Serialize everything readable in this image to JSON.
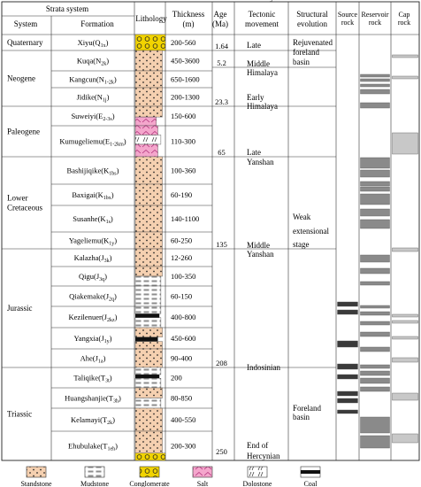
{
  "headers": {
    "strata_system": "Strata system",
    "system": "System",
    "formation": "Formation",
    "lithology": "Lithology",
    "thickness": [
      "Thickness",
      "(m)"
    ],
    "age": [
      "Age",
      "(Ma)"
    ],
    "tectonic": [
      "Tectonic",
      "movement"
    ],
    "structural": [
      "Structural",
      "evolution"
    ],
    "source": [
      "Source",
      "rock"
    ],
    "reservoir": [
      "Reservoir",
      "rock"
    ],
    "cap": [
      "Cap",
      "rock"
    ]
  },
  "systems": [
    {
      "name": [
        "Quaternary"
      ]
    },
    {
      "name": [
        "Neogene"
      ]
    },
    {
      "name": [
        "Paleogene"
      ]
    },
    {
      "name": [
        "Lower",
        "Cretaceous"
      ]
    },
    {
      "name": [
        "Jurassic"
      ]
    },
    {
      "name": [
        "Triassic"
      ]
    }
  ],
  "formations": [
    {
      "name": "Xiyu",
      "code": "Q",
      "sub": "1x",
      "thickness": "200-560",
      "lith": "conglomerate"
    },
    {
      "name": "Kuqa",
      "code": "N",
      "sub": "2k",
      "thickness": "450-3600",
      "lith": "sand"
    },
    {
      "name": "Kangcun",
      "code": "N",
      "sub": "1-2k",
      "thickness": "650-1600",
      "lith": "sand"
    },
    {
      "name": "Jidike",
      "code": "N",
      "sub": "1j",
      "thickness": "200-1300",
      "lith": "sand"
    },
    {
      "name": "Suweiyi",
      "code": "E",
      "sub": "2-3s",
      "thickness": "150-600",
      "lith": "sand-salt"
    },
    {
      "name": "Kumugeliemu",
      "code": "E",
      "sub": "1-2km",
      "thickness": "110-300",
      "lith": "salt-dolo"
    },
    {
      "name": "Bashijiqike",
      "code": "K",
      "sub": "1bs",
      "thickness": "100-360",
      "lith": "sand"
    },
    {
      "name": "Baxigai",
      "code": "K",
      "sub": "1bx",
      "thickness": "60-190",
      "lith": "sand"
    },
    {
      "name": "Susanhe",
      "code": "K",
      "sub": "1s",
      "thickness": "140-1100",
      "lith": "sand"
    },
    {
      "name": "Yageliemu",
      "code": "K",
      "sub": "1y",
      "thickness": "60-250",
      "lith": "sand"
    },
    {
      "name": "Kalazha",
      "code": "J",
      "sub": "3k",
      "thickness": "12-260",
      "lith": "sand"
    },
    {
      "name": "Qigu",
      "code": "J",
      "sub": "3q",
      "thickness": "100-350",
      "lith": "sand-mud"
    },
    {
      "name": "Qiakemake",
      "code": "J",
      "sub": "2q",
      "thickness": "60-150",
      "lith": "mud"
    },
    {
      "name": "Kezilenuer",
      "code": "J",
      "sub": "2kz",
      "thickness": "400-800",
      "lith": "mud-coal"
    },
    {
      "name": "Yangxia",
      "code": "J",
      "sub": "1y",
      "thickness": "450-600",
      "lith": "sand-coal"
    },
    {
      "name": "Ahe",
      "code": "J",
      "sub": "1a",
      "thickness": "90-400",
      "lith": "sand"
    },
    {
      "name": "Taliqike",
      "code": "T",
      "sub": "3t",
      "thickness": "200",
      "lith": "mud-coal"
    },
    {
      "name": "Huangshanjie",
      "code": "T",
      "sub": "3h",
      "thickness": "80-850",
      "lith": "sand-mud"
    },
    {
      "name": "Kelamayi",
      "code": "T",
      "sub": "2k",
      "thickness": "400-550",
      "lith": "sand"
    },
    {
      "name": "Ehubulake",
      "code": "T",
      "sub": "1eh",
      "thickness": "200-300",
      "lith": "sand-cong"
    }
  ],
  "ages": [
    {
      "label": "1.64"
    },
    {
      "label": "5.2"
    },
    {
      "label": "23.3"
    },
    {
      "label": "65"
    },
    {
      "label": "135"
    },
    {
      "label": "208"
    },
    {
      "label": "250"
    }
  ],
  "tectonic": [
    {
      "text": [
        "Late",
        "Himalaya"
      ]
    },
    {
      "text": [
        "Middle",
        "Himalaya"
      ]
    },
    {
      "text": [
        "Early",
        "Himalaya"
      ]
    },
    {
      "text": [
        "Late",
        "Yanshan"
      ]
    },
    {
      "text": [
        "Middle",
        "Yanshan"
      ]
    },
    {
      "text": [
        "Indosinian"
      ]
    },
    {
      "text": [
        "End of",
        "Hercynian"
      ]
    }
  ],
  "structural": [
    {
      "text": [
        "Rejuvenated",
        "foreland",
        "basin"
      ]
    },
    {
      "text": [
        "Weak",
        "extensional",
        "stage"
      ]
    },
    {
      "text": [
        "Foreland",
        "basin"
      ]
    }
  ],
  "legend": [
    {
      "key": "sand",
      "label": "Standstone"
    },
    {
      "key": "mud",
      "label": "Mudstone"
    },
    {
      "key": "conglomerate",
      "label": "Conglomerate"
    },
    {
      "key": "salt",
      "label": "Salt"
    },
    {
      "key": "dolo",
      "label": "Dolostone"
    },
    {
      "key": "coal",
      "label": "Coal"
    }
  ],
  "colors": {
    "sandstone": "#f5d0b0",
    "conglomerate": "#f2d400",
    "salt": "#f4a6cc",
    "mudstone_gray": "#8e8e8e",
    "source_dark": "#3a3a3a",
    "reservoir_gray": "#8a8a8a",
    "cap_light": "#c8c8c8",
    "coal": "#111111"
  }
}
